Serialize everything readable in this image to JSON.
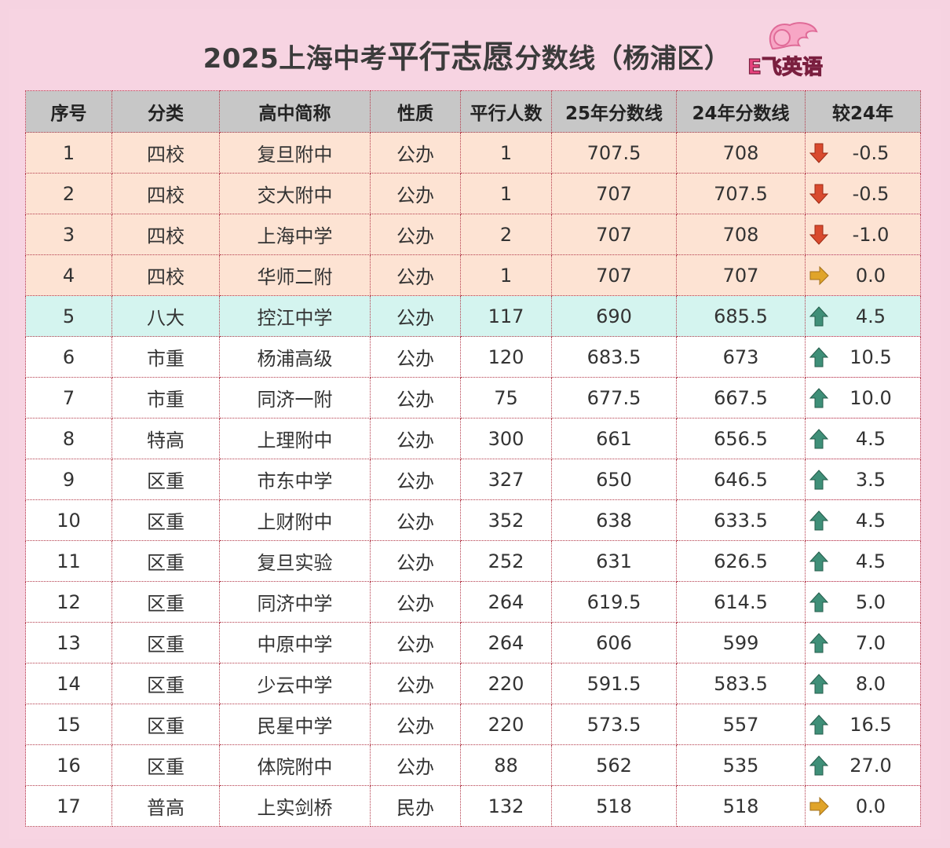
{
  "title": {
    "part1": "2025上海中考",
    "part2": "平行志愿",
    "part3": "分数线（杨浦区）"
  },
  "logo": {
    "text": "E飞英语"
  },
  "colors": {
    "top4_row": "#fde3d3",
    "eight_row": "#d4f4ef",
    "header_bg": "#c7c7c7",
    "down_arrow": "#d94a2e",
    "up_arrow": "#3f8f78",
    "flat_arrow": "#e0a42a"
  },
  "table": {
    "headers": [
      "序号",
      "分类",
      "高中简称",
      "性质",
      "平行人数",
      "25年分数线",
      "24年分数线",
      "较24年"
    ],
    "rows": [
      {
        "no": "1",
        "cat": "四校",
        "name": "复旦附中",
        "type": "公办",
        "count": "1",
        "s25": "707.5",
        "s24": "708",
        "diff": "-0.5",
        "trend": "down",
        "group": "top4"
      },
      {
        "no": "2",
        "cat": "四校",
        "name": "交大附中",
        "type": "公办",
        "count": "1",
        "s25": "707",
        "s24": "707.5",
        "diff": "-0.5",
        "trend": "down",
        "group": "top4"
      },
      {
        "no": "3",
        "cat": "四校",
        "name": "上海中学",
        "type": "公办",
        "count": "2",
        "s25": "707",
        "s24": "708",
        "diff": "-1.0",
        "trend": "down",
        "group": "top4"
      },
      {
        "no": "4",
        "cat": "四校",
        "name": "华师二附",
        "type": "公办",
        "count": "1",
        "s25": "707",
        "s24": "707",
        "diff": "0.0",
        "trend": "flat",
        "group": "top4"
      },
      {
        "no": "5",
        "cat": "八大",
        "name": "控江中学",
        "type": "公办",
        "count": "117",
        "s25": "690",
        "s24": "685.5",
        "diff": "4.5",
        "trend": "up",
        "group": "eight"
      },
      {
        "no": "6",
        "cat": "市重",
        "name": "杨浦高级",
        "type": "公办",
        "count": "120",
        "s25": "683.5",
        "s24": "673",
        "diff": "10.5",
        "trend": "up",
        "group": "normal"
      },
      {
        "no": "7",
        "cat": "市重",
        "name": "同济一附",
        "type": "公办",
        "count": "75",
        "s25": "677.5",
        "s24": "667.5",
        "diff": "10.0",
        "trend": "up",
        "group": "normal"
      },
      {
        "no": "8",
        "cat": "特高",
        "name": "上理附中",
        "type": "公办",
        "count": "300",
        "s25": "661",
        "s24": "656.5",
        "diff": "4.5",
        "trend": "up",
        "group": "normal"
      },
      {
        "no": "9",
        "cat": "区重",
        "name": "市东中学",
        "type": "公办",
        "count": "327",
        "s25": "650",
        "s24": "646.5",
        "diff": "3.5",
        "trend": "up",
        "group": "normal"
      },
      {
        "no": "10",
        "cat": "区重",
        "name": "上财附中",
        "type": "公办",
        "count": "352",
        "s25": "638",
        "s24": "633.5",
        "diff": "4.5",
        "trend": "up",
        "group": "normal"
      },
      {
        "no": "11",
        "cat": "区重",
        "name": "复旦实验",
        "type": "公办",
        "count": "252",
        "s25": "631",
        "s24": "626.5",
        "diff": "4.5",
        "trend": "up",
        "group": "normal"
      },
      {
        "no": "12",
        "cat": "区重",
        "name": "同济中学",
        "type": "公办",
        "count": "264",
        "s25": "619.5",
        "s24": "614.5",
        "diff": "5.0",
        "trend": "up",
        "group": "normal"
      },
      {
        "no": "13",
        "cat": "区重",
        "name": "中原中学",
        "type": "公办",
        "count": "264",
        "s25": "606",
        "s24": "599",
        "diff": "7.0",
        "trend": "up",
        "group": "normal"
      },
      {
        "no": "14",
        "cat": "区重",
        "name": "少云中学",
        "type": "公办",
        "count": "220",
        "s25": "591.5",
        "s24": "583.5",
        "diff": "8.0",
        "trend": "up",
        "group": "normal"
      },
      {
        "no": "15",
        "cat": "区重",
        "name": "民星中学",
        "type": "公办",
        "count": "220",
        "s25": "573.5",
        "s24": "557",
        "diff": "16.5",
        "trend": "up",
        "group": "normal"
      },
      {
        "no": "16",
        "cat": "区重",
        "name": "体院附中",
        "type": "公办",
        "count": "88",
        "s25": "562",
        "s24": "535",
        "diff": "27.0",
        "trend": "up",
        "group": "normal"
      },
      {
        "no": "17",
        "cat": "普高",
        "name": "上实剑桥",
        "type": "民办",
        "count": "132",
        "s25": "518",
        "s24": "518",
        "diff": "0.0",
        "trend": "flat",
        "group": "normal"
      }
    ]
  }
}
